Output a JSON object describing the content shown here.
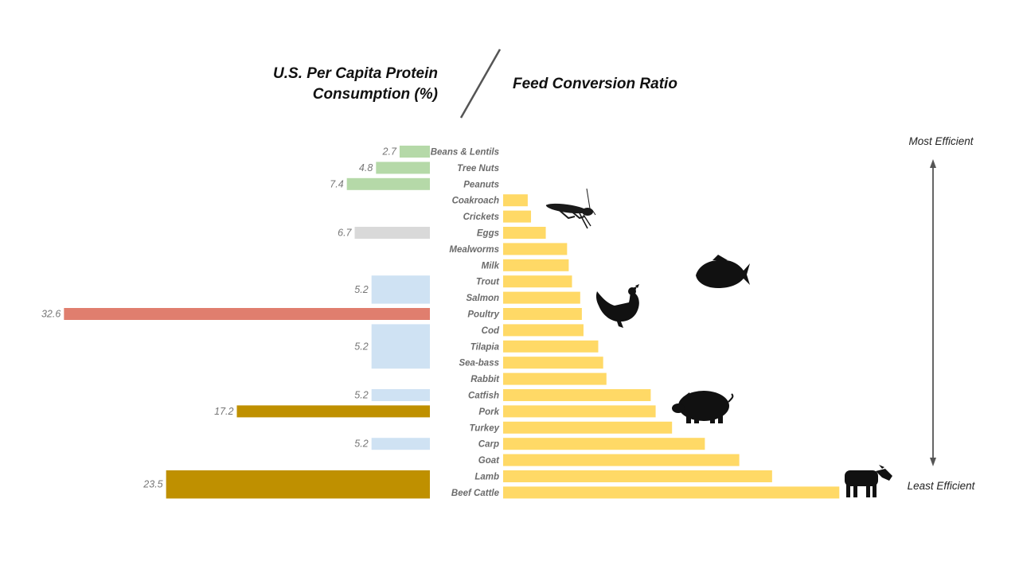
{
  "chart_data": {
    "type": "bar",
    "title_left_line1": "U.S. Per Capita Protein",
    "title_left_line2": "Consumption (%)",
    "title_right": "Feed Conversion Ratio",
    "scale_top_label": "Most Efficient",
    "scale_bottom_label": "Least Efficient",
    "categories": [
      "Beans & Lentils",
      "Tree Nuts",
      "Peanuts",
      "Coakroach",
      "Crickets",
      "Eggs",
      "Mealworms",
      "Milk",
      "Trout",
      "Salmon",
      "Poultry",
      "Cod",
      "Tilapia",
      "Sea-bass",
      "Rabbit",
      "Catfish",
      "Pork",
      "Turkey",
      "Carp",
      "Goat",
      "Lamb",
      "Beef Cattle"
    ],
    "feed_conversion_ratio": [
      null,
      null,
      null,
      1.5,
      1.7,
      2.6,
      3.9,
      4.0,
      4.2,
      4.7,
      4.8,
      4.9,
      5.8,
      6.1,
      6.3,
      9.0,
      9.3,
      10.3,
      12.3,
      14.4,
      16.4,
      20.5
    ],
    "protein_consumption": [
      {
        "label": "2.7",
        "value": 2.7,
        "rows": [
          "Beans & Lentils"
        ],
        "color": "#b5d9a8"
      },
      {
        "label": "4.8",
        "value": 4.8,
        "rows": [
          "Tree Nuts"
        ],
        "color": "#b5d9a8"
      },
      {
        "label": "7.4",
        "value": 7.4,
        "rows": [
          "Peanuts"
        ],
        "color": "#b5d9a8"
      },
      {
        "label": "6.7",
        "value": 6.7,
        "rows": [
          "Eggs"
        ],
        "color": "#d9d9d9"
      },
      {
        "label": "5.2",
        "value": 5.2,
        "rows": [
          "Trout",
          "Salmon"
        ],
        "color": "#cfe2f3"
      },
      {
        "label": "32.6",
        "value": 32.6,
        "rows": [
          "Poultry"
        ],
        "color": "#e07e6e"
      },
      {
        "label": "5.2",
        "value": 5.2,
        "rows": [
          "Cod",
          "Tilapia",
          "Sea-bass"
        ],
        "color": "#cfe2f3"
      },
      {
        "label": "5.2",
        "value": 5.2,
        "rows": [
          "Catfish"
        ],
        "color": "#cfe2f3"
      },
      {
        "label": "17.2",
        "value": 17.2,
        "rows": [
          "Pork"
        ],
        "color": "#bf9000"
      },
      {
        "label": "5.2",
        "value": 5.2,
        "rows": [
          "Carp"
        ],
        "color": "#cfe2f3"
      },
      {
        "label": "23.5",
        "value": 23.5,
        "rows": [
          "Lamb",
          "Beef Cattle"
        ],
        "color": "#bf9000"
      }
    ],
    "fcr_bar_color": "#ffd966",
    "icons": [
      "cricket-icon",
      "fish-icon",
      "chicken-icon",
      "pig-icon",
      "cow-icon"
    ]
  }
}
